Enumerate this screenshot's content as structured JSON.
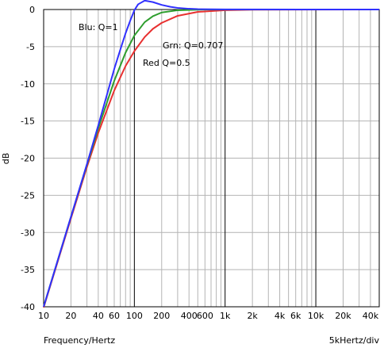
{
  "chart_data": {
    "type": "line",
    "xscale": "log",
    "xlim": [
      10,
      50000
    ],
    "ylim": [
      -40,
      0
    ],
    "xlabel": "Frequency/Hertz",
    "ylabel": "dB",
    "x_div_note": "5kHertz/div",
    "x_ticks": [
      {
        "value": 10,
        "label": "10"
      },
      {
        "value": 20,
        "label": "20"
      },
      {
        "value": 40,
        "label": "40"
      },
      {
        "value": 60,
        "label": "60"
      },
      {
        "value": 100,
        "label": "100"
      },
      {
        "value": 200,
        "label": "200"
      },
      {
        "value": 400,
        "label": "400"
      },
      {
        "value": 600,
        "label": "600"
      },
      {
        "value": 1000,
        "label": "1k"
      },
      {
        "value": 2000,
        "label": "2k"
      },
      {
        "value": 4000,
        "label": "4k"
      },
      {
        "value": 6000,
        "label": "6k"
      },
      {
        "value": 10000,
        "label": "10k"
      },
      {
        "value": 20000,
        "label": "20k"
      },
      {
        "value": 40000,
        "label": "40k"
      }
    ],
    "y_ticks": [
      0,
      -5,
      -10,
      -15,
      -20,
      -25,
      -30,
      -35,
      -40
    ],
    "grid": true,
    "series": [
      {
        "label": "Red Q=0.5",
        "color": "#e83030",
        "x": [
          10,
          20,
          30,
          40,
          60,
          80,
          100,
          130,
          160,
          200,
          300,
          500,
          1000,
          2000,
          50000
        ],
        "y": [
          -40.1,
          -28.1,
          -21.2,
          -16.6,
          -10.9,
          -7.6,
          -5.6,
          -3.7,
          -2.6,
          -1.8,
          -0.85,
          -0.32,
          -0.09,
          -0.02,
          0
        ]
      },
      {
        "label": "Grn: Q=0.707",
        "color": "#2e9e2e",
        "x": [
          10,
          20,
          30,
          40,
          60,
          80,
          100,
          130,
          160,
          200,
          300,
          500,
          1000,
          2000,
          50000
        ],
        "y": [
          -40,
          -27.9,
          -20.9,
          -16.0,
          -9.6,
          -5.8,
          -3.5,
          -1.7,
          -0.9,
          -0.4,
          -0.1,
          -0.02,
          0,
          0,
          0
        ]
      },
      {
        "label": "Blu: Q=1",
        "color": "#3030ff",
        "x": [
          10,
          20,
          30,
          40,
          60,
          70,
          80,
          90,
          100,
          110,
          130,
          160,
          200,
          250,
          300,
          400,
          500,
          1000,
          50000
        ],
        "y": [
          -40,
          -27.9,
          -20.8,
          -15.6,
          -8.0,
          -5.4,
          -3.2,
          -1.5,
          -0.1,
          0.7,
          1.2,
          1.0,
          0.62,
          0.36,
          0.22,
          0.1,
          0.05,
          0.01,
          0
        ]
      }
    ]
  }
}
